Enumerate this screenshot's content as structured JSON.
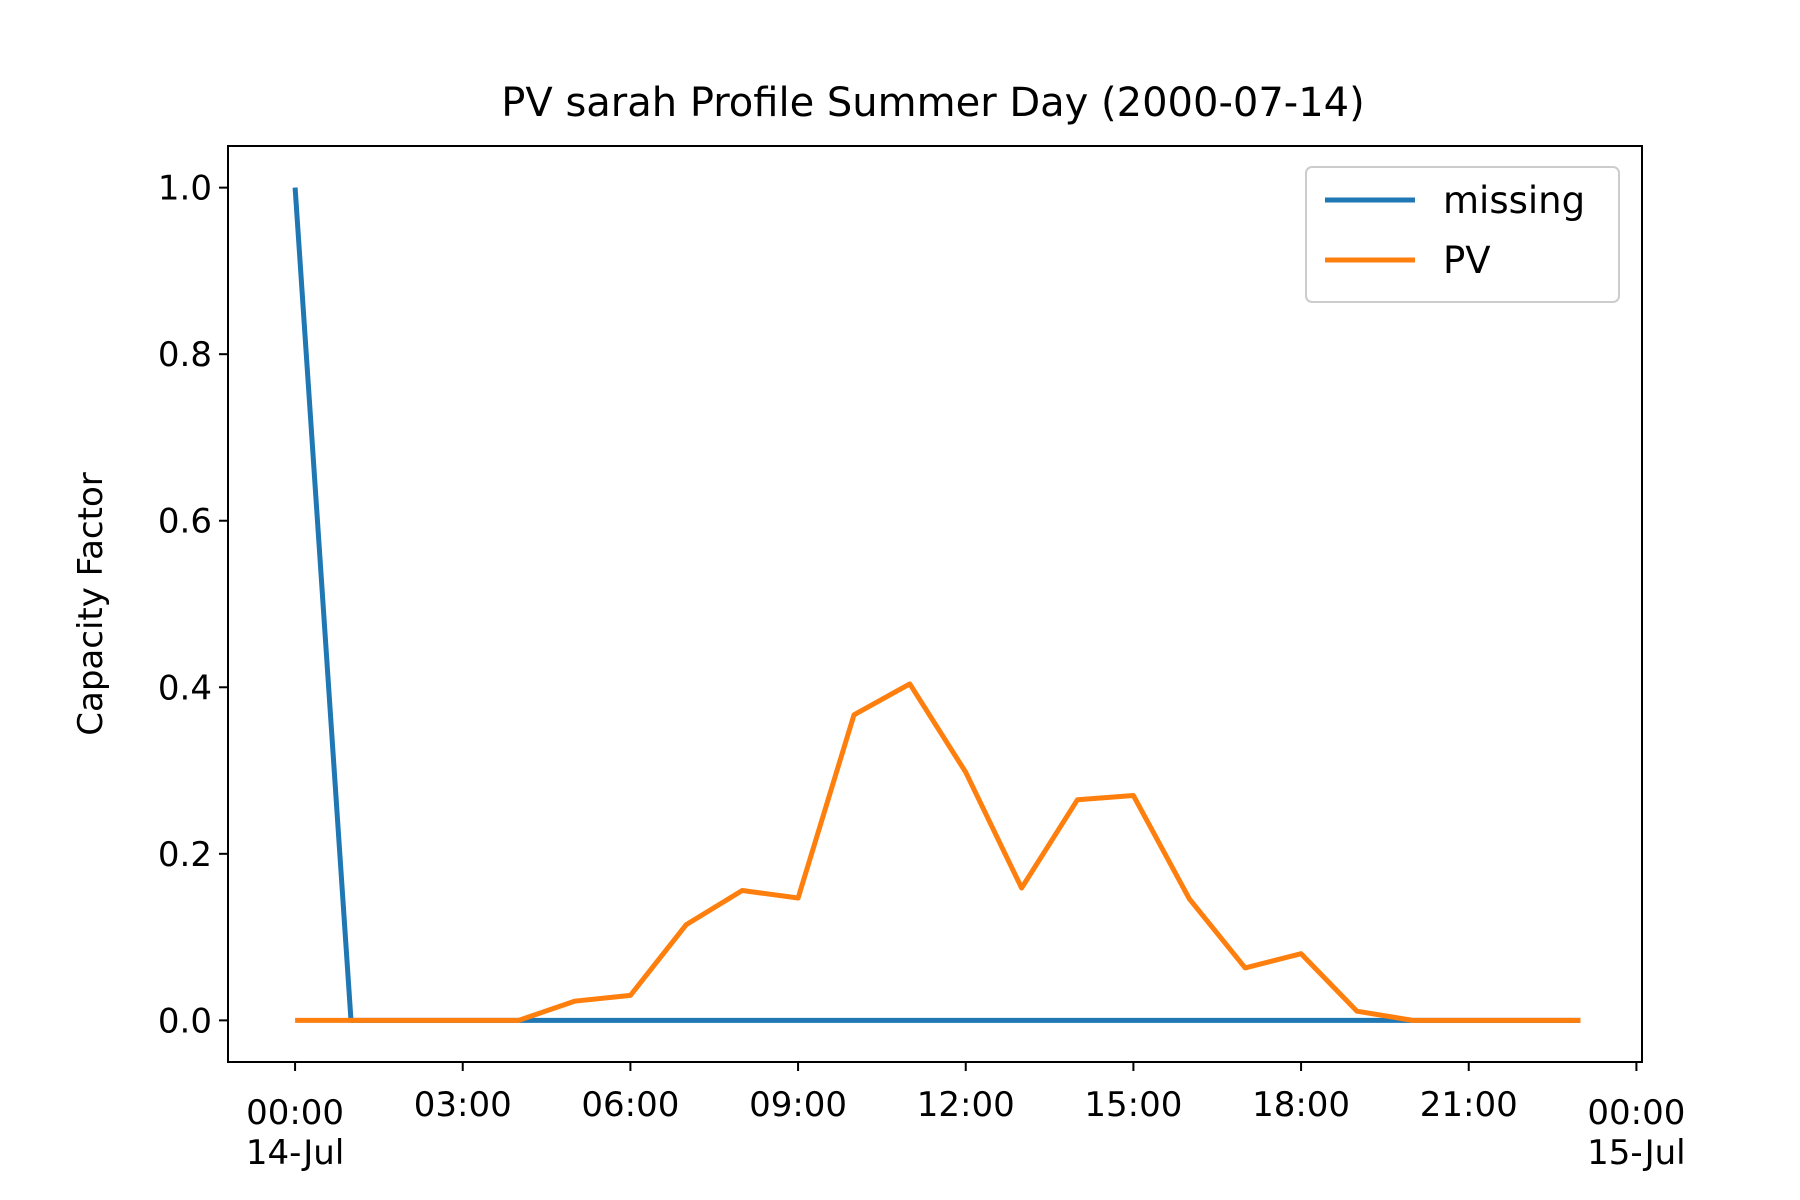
{
  "chart_data": {
    "type": "line",
    "title": "PV sarah Profile Summer Day (2000-07-14)",
    "xlabel": "",
    "ylabel": "Capacity Factor",
    "x_unit": "hour of 2000-07-14",
    "x": [
      0,
      1,
      2,
      3,
      4,
      5,
      6,
      7,
      8,
      9,
      10,
      11,
      12,
      13,
      14,
      15,
      16,
      17,
      18,
      19,
      20,
      21,
      22,
      23
    ],
    "xlim": [
      -1.2,
      24.1
    ],
    "ylim": [
      -0.05,
      1.05
    ],
    "grid": false,
    "legend_position": "top-right",
    "x_ticks": [
      {
        "value": 0,
        "labels": [
          "00:00",
          "14-Jul"
        ]
      },
      {
        "value": 3,
        "labels": [
          "03:00"
        ]
      },
      {
        "value": 6,
        "labels": [
          "06:00"
        ]
      },
      {
        "value": 9,
        "labels": [
          "09:00"
        ]
      },
      {
        "value": 12,
        "labels": [
          "12:00"
        ]
      },
      {
        "value": 15,
        "labels": [
          "15:00"
        ]
      },
      {
        "value": 18,
        "labels": [
          "18:00"
        ]
      },
      {
        "value": 21,
        "labels": [
          "21:00"
        ]
      },
      {
        "value": 24,
        "labels": [
          "00:00",
          "15-Jul"
        ]
      }
    ],
    "y_ticks": [
      "0.0",
      "0.2",
      "0.4",
      "0.6",
      "0.8",
      "1.0"
    ],
    "series": [
      {
        "name": "missing",
        "color": "#1f77b4",
        "values": [
          1.0,
          0,
          0,
          0,
          0,
          0,
          0,
          0,
          0,
          0,
          0,
          0,
          0,
          0,
          0,
          0,
          0,
          0,
          0,
          0,
          0,
          0,
          0,
          0
        ]
      },
      {
        "name": "PV",
        "color": "#ff7f0e",
        "values": [
          0,
          0,
          0,
          0,
          0,
          0.023,
          0.03,
          0.115,
          0.156,
          0.147,
          0.367,
          0.404,
          0.298,
          0.159,
          0.265,
          0.27,
          0.146,
          0.063,
          0.08,
          0.011,
          0,
          0,
          0,
          0
        ]
      }
    ]
  }
}
